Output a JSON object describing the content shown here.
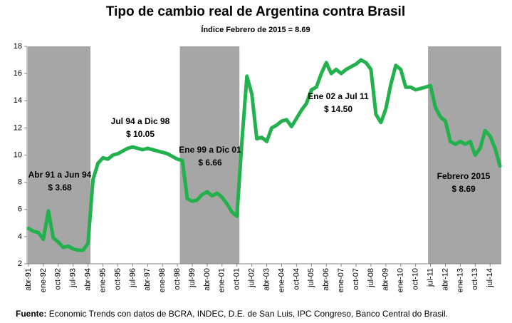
{
  "chart_data": {
    "type": "line",
    "title": "Tipo de cambio real de Argentina contra Brasil",
    "subtitle": "Índice Febrero de 2015 = 8.69",
    "source_label": "Fuente:",
    "source": "Economic Trends con datos de BCRA, INDEC, D.E. de San Luis, IPC Congreso, Banco Central do Brasil.",
    "categories": [
      "abr-91",
      null,
      null,
      "ene-92",
      null,
      null,
      "oct-92",
      null,
      null,
      "jul-93",
      null,
      null,
      "abr-94",
      null,
      null,
      "ene-95",
      null,
      null,
      "oct-95",
      null,
      null,
      "jul-96",
      null,
      null,
      "abr-97",
      null,
      null,
      "ene-98",
      null,
      null,
      "oct-98",
      null,
      null,
      "jul-99",
      null,
      null,
      "abr-00",
      null,
      null,
      "ene-01",
      null,
      null,
      "oct-01",
      null,
      null,
      "jul-02",
      null,
      null,
      "abr-03",
      null,
      null,
      "ene-04",
      null,
      null,
      "oct-04",
      null,
      null,
      "jul-05",
      null,
      null,
      "abr-06",
      null,
      null,
      "ene-07",
      null,
      null,
      "oct-07",
      null,
      null,
      "jul-08",
      null,
      null,
      "abr-09",
      null,
      null,
      "ene-10",
      null,
      null,
      "oct-10",
      null,
      null,
      "jul-11",
      null,
      null,
      "abr-12",
      null,
      null,
      "ene-13",
      null,
      null,
      "oct-13",
      null,
      null,
      "jul-14",
      null,
      null
    ],
    "values": [
      4.6,
      4.4,
      4.3,
      3.8,
      5.9,
      3.9,
      3.6,
      3.2,
      3.3,
      3.1,
      3.0,
      3.0,
      3.5,
      8.2,
      9.4,
      9.8,
      9.7,
      10.0,
      10.1,
      10.3,
      10.5,
      10.6,
      10.5,
      10.4,
      10.5,
      10.4,
      10.3,
      10.2,
      10.1,
      9.9,
      9.7,
      9.6,
      6.8,
      6.6,
      6.7,
      7.1,
      7.3,
      7.0,
      7.2,
      6.9,
      6.4,
      5.8,
      5.5,
      11.0,
      15.8,
      14.5,
      11.2,
      11.3,
      11.0,
      12.0,
      12.2,
      12.5,
      12.6,
      12.1,
      12.7,
      13.3,
      13.8,
      14.8,
      15.0,
      16.0,
      16.8,
      16.0,
      16.3,
      16.0,
      16.3,
      16.5,
      16.7,
      17.0,
      16.8,
      16.3,
      13.0,
      12.4,
      13.4,
      15.2,
      16.6,
      16.3,
      15.0,
      15.0,
      14.8,
      14.9,
      15.0,
      15.1,
      13.5,
      12.8,
      12.5,
      11.0,
      10.8,
      11.0,
      10.8,
      11.0,
      10.0,
      10.5,
      11.8,
      11.4,
      10.5,
      9.2
    ],
    "color": "#22b14c",
    "shade_color": "#a6a6a6",
    "ylim": [
      2,
      18
    ],
    "yticks": [
      2,
      4,
      6,
      8,
      10,
      12,
      14,
      16,
      18
    ],
    "shaded_periods": [
      {
        "start": 0,
        "end": 12
      },
      {
        "start": 31,
        "end": 42
      },
      {
        "start": 81,
        "end": 95
      }
    ],
    "annotations": [
      {
        "text": "Abr 91 a Jun 94",
        "value": 3.68,
        "value_label": "$ 3.68"
      },
      {
        "text": "Jul 94 a Dic 98",
        "value": 10.05,
        "value_label": "$ 10.05"
      },
      {
        "text": "Ene 99 a Dic 01",
        "value": 6.66,
        "value_label": "$ 6.66"
      },
      {
        "text": "Ene 02 a Jul 11",
        "value": 14.5,
        "value_label": "$ 14.50"
      },
      {
        "text": "Febrero 2015",
        "value": 8.69,
        "value_label": "$ 8.69"
      }
    ]
  }
}
